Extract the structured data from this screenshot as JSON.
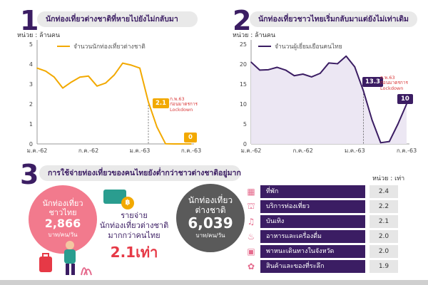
{
  "section1": {
    "number": "1",
    "title": "นักท่องเที่ยวต่างชาติที่หายไปยังไม่กลับมา",
    "unit": "หน่วย : ล้านคน",
    "legend": "จำนวนนักท่องเที่ยวต่างชาติ",
    "annotation_value": "2.1",
    "annotation_note": [
      "ก.พ.63",
      "ก่อนมาตรการ",
      "Lockdown"
    ],
    "end_value": "0"
  },
  "section2": {
    "number": "2",
    "title": "นักท่องเที่ยวชาวไทยเริ่มกลับมาแต่ยังไม่เท่าเดิม",
    "unit": "หน่วย : ล้านคน",
    "legend": "จำนวนผู้เยี่ยมเยือนคนไทย",
    "annotation_value": "13.3",
    "annotation_note": [
      "ก.พ.63",
      "ก่อนมาตรการ",
      "Lockdown"
    ],
    "end_value": "10"
  },
  "section3": {
    "number": "3",
    "title": "การใช้จ่ายท่องเที่ยวของคนไทยยังต่ำกว่าชาวต่างชาติอยู่มาก",
    "thai_circle": {
      "label": [
        "นักท่องเที่ยว",
        "ชาวไทย"
      ],
      "value": "2,866",
      "unit": "บาท/คน/วัน"
    },
    "foreign_circle": {
      "label": [
        "นักท่องเที่ยว",
        "ต่างชาติ"
      ],
      "value": "6,039",
      "unit": "บาท/คน/วัน"
    },
    "compare_text": [
      "รายจ่าย",
      "นักท่องเที่ยวต่างชาติ",
      "มากกว่าคนไทย"
    ],
    "compare_big": "2.1เท่า",
    "coin_label": "฿",
    "table_unit": "หน่วย : เท่า",
    "table": [
      {
        "icon": "building-icon",
        "glyph": "▦",
        "label": "ที่พัก",
        "value": "2.4"
      },
      {
        "icon": "tour-icon",
        "glyph": "⛫",
        "label": "บริการท่องเที่ยว",
        "value": "2.2"
      },
      {
        "icon": "entertainment-icon",
        "glyph": "♫",
        "label": "บันเทิง",
        "value": "2.1"
      },
      {
        "icon": "food-icon",
        "glyph": "♨",
        "label": "อาหารและเครื่องดื่ม",
        "value": "2.0"
      },
      {
        "icon": "bus-icon",
        "glyph": "▣",
        "label": "พาหนะเดินทางในจังหวัด",
        "value": "2.0"
      },
      {
        "icon": "shopping-icon",
        "glyph": "✿",
        "label": "สินค้าและของที่ระลึก",
        "value": "1.9"
      }
    ]
  },
  "colors": {
    "accent_orange": "#f2a900",
    "accent_purple": "#3b1d63",
    "red": "#e63946",
    "gray": "#5a5a5a"
  },
  "chart_data": [
    {
      "type": "line",
      "series": [
        {
          "name": "จำนวนนักท่องเที่ยวต่างชาติ",
          "color": "#f2a900",
          "x": [
            "2019-01",
            "2019-02",
            "2019-03",
            "2019-04",
            "2019-05",
            "2019-06",
            "2019-07",
            "2019-08",
            "2019-09",
            "2019-10",
            "2019-11",
            "2019-12",
            "2020-01",
            "2020-02",
            "2020-03",
            "2020-04",
            "2020-05",
            "2020-06",
            "2020-07"
          ],
          "values": [
            3.8,
            3.65,
            3.35,
            2.8,
            3.1,
            3.35,
            3.4,
            2.9,
            3.05,
            3.45,
            4.05,
            3.95,
            3.8,
            2.1,
            0.85,
            0.01,
            0,
            0,
            0
          ]
        }
      ],
      "x_ticks": [
        "ม.ค.-62",
        "ก.ค.-62",
        "ม.ค.-63",
        "ก.ค.-63"
      ],
      "y_ticks": [
        "0",
        "1",
        "2",
        "3",
        "4",
        "5"
      ],
      "ylim": [
        0,
        5
      ]
    },
    {
      "type": "line",
      "series": [
        {
          "name": "จำนวนผู้เยี่ยมเยือนคนไทย",
          "color": "#3b1d63",
          "x": [
            "2019-01",
            "2019-02",
            "2019-03",
            "2019-04",
            "2019-05",
            "2019-06",
            "2019-07",
            "2019-08",
            "2019-09",
            "2019-10",
            "2019-11",
            "2019-12",
            "2020-01",
            "2020-02",
            "2020-03",
            "2020-04",
            "2020-05",
            "2020-06",
            "2020-07"
          ],
          "values": [
            20.5,
            18.5,
            18.6,
            19.2,
            18.5,
            17.1,
            17.5,
            16.8,
            17.7,
            20.3,
            20.1,
            22.0,
            19.3,
            13.3,
            6.0,
            0.3,
            0.6,
            5.0,
            10
          ]
        }
      ],
      "x_ticks": [
        "ม.ค.-62",
        "ก.ค.-62",
        "ม.ค.-63",
        "ก.ค.-63"
      ],
      "y_ticks": [
        "0",
        "5",
        "10",
        "15",
        "20",
        "25"
      ],
      "ylim": [
        0,
        25
      ]
    }
  ]
}
